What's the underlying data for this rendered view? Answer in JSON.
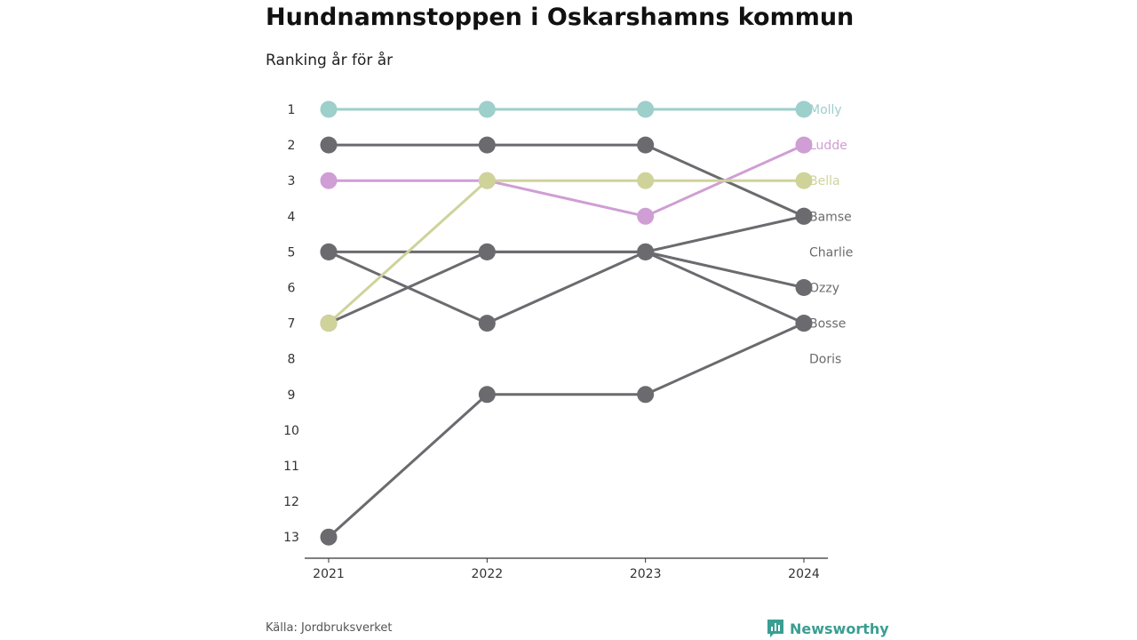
{
  "header": {
    "title": "Hundnamnstoppen i Oskarshamns kommun",
    "subtitle": "Ranking år för år"
  },
  "footer": {
    "source": "Källa: Jordbruksverket",
    "brand": "Newsworthy"
  },
  "colors": {
    "Molly": "#9dcfcb",
    "Ludde": "#cf9ed4",
    "Bella": "#cfd39a",
    "other": "#6b6b6f",
    "axis": "#333333",
    "tick_text": "#333333",
    "brand": "#3a9e92"
  },
  "chart_data": {
    "type": "line",
    "title": "Hundnamnstoppen i Oskarshamns kommun",
    "subtitle": "Ranking år för år",
    "x": [
      "2021",
      "2022",
      "2023",
      "2024"
    ],
    "y_ticks": [
      1,
      2,
      3,
      4,
      5,
      6,
      7,
      8,
      9,
      10,
      11,
      12,
      13
    ],
    "ylim": [
      1,
      13
    ],
    "y_reversed": true,
    "legend": "end-labels-right",
    "series": [
      {
        "name": "Molly",
        "values": [
          1,
          1,
          1,
          1
        ],
        "color": "#9dcfcb"
      },
      {
        "name": "Ludde",
        "values": [
          3,
          3,
          4,
          2
        ],
        "color": "#cf9ed4"
      },
      {
        "name": "Bella",
        "values": [
          7,
          3,
          3,
          3
        ],
        "color": "#cfd39a"
      },
      {
        "name": "Bamse",
        "values": [
          2,
          2,
          2,
          4
        ],
        "color": "#6b6b6f"
      },
      {
        "name": "Charlie",
        "values": [
          7,
          5,
          5,
          4
        ],
        "color": "#6b6b6f"
      },
      {
        "name": "Ozzy",
        "values": [
          5,
          5,
          5,
          6
        ],
        "color": "#6b6b6f"
      },
      {
        "name": "Bosse",
        "values": [
          5,
          7,
          5,
          7
        ],
        "color": "#6b6b6f"
      },
      {
        "name": "Doris",
        "values": [
          13,
          9,
          9,
          7
        ],
        "color": "#6b6b6f"
      }
    ],
    "end_labels": [
      "Molly",
      "Ludde",
      "Bella",
      "Bamse",
      "Charlie",
      "Ozzy",
      "Bosse",
      "Doris"
    ],
    "source": "Källa: Jordbruksverket"
  }
}
